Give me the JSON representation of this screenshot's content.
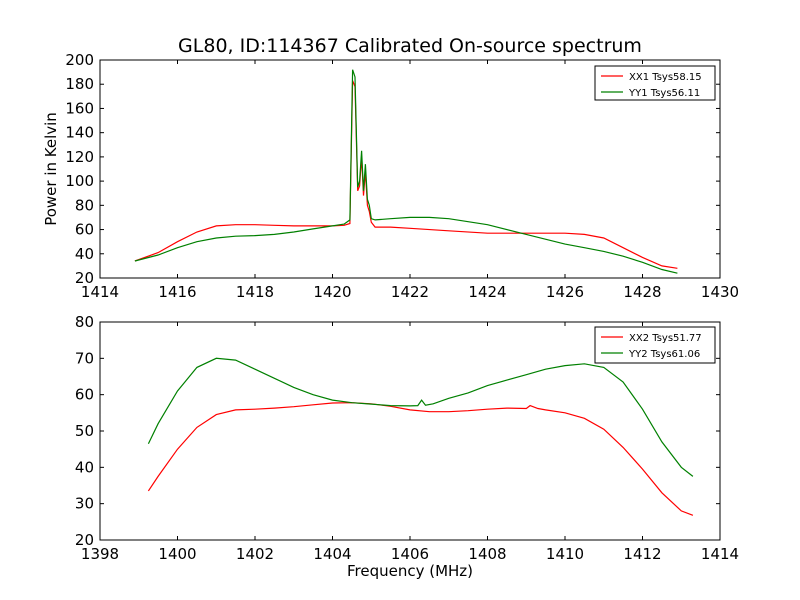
{
  "title": "GL80, ID:114367 Calibrated On-source spectrum",
  "chart_data": [
    {
      "type": "line",
      "xlabel": "",
      "ylabel": "Power in Kelvin",
      "xlim": [
        1414,
        1430
      ],
      "ylim": [
        20,
        200
      ],
      "xticks": [
        1414,
        1416,
        1418,
        1420,
        1422,
        1424,
        1426,
        1428,
        1430
      ],
      "yticks": [
        20,
        40,
        60,
        80,
        100,
        120,
        140,
        160,
        180,
        200
      ],
      "grid": false,
      "legend": "top-right",
      "series": [
        {
          "name": "XX1 Tsys58.15",
          "color": "#ff0000",
          "x": [
            1414.9,
            1415.5,
            1416.0,
            1416.5,
            1417.0,
            1417.5,
            1418.0,
            1418.5,
            1419.0,
            1419.5,
            1420.0,
            1420.3,
            1420.45,
            1420.52,
            1420.58,
            1420.65,
            1420.7,
            1420.75,
            1420.8,
            1420.85,
            1420.9,
            1420.95,
            1421.0,
            1421.1,
            1421.5,
            1422.0,
            1423.0,
            1424.0,
            1425.0,
            1426.0,
            1426.5,
            1427.0,
            1427.5,
            1428.0,
            1428.5,
            1428.9
          ],
          "y": [
            34,
            41,
            50,
            58,
            63,
            64,
            64,
            63.5,
            63,
            63,
            63,
            63.5,
            65,
            183,
            178,
            92,
            96,
            120,
            88,
            108,
            80,
            75,
            66,
            62,
            62,
            61,
            59,
            57,
            57,
            57,
            56,
            53,
            45,
            37,
            30,
            28
          ]
        },
        {
          "name": "YY1 Tsys56.11",
          "color": "#008000",
          "x": [
            1414.9,
            1415.5,
            1416.0,
            1416.5,
            1417.0,
            1417.5,
            1418.0,
            1418.5,
            1419.0,
            1419.5,
            1420.0,
            1420.3,
            1420.45,
            1420.52,
            1420.58,
            1420.65,
            1420.7,
            1420.75,
            1420.8,
            1420.85,
            1420.9,
            1420.95,
            1421.0,
            1421.1,
            1421.5,
            1422.0,
            1422.5,
            1423.0,
            1424.0,
            1425.0,
            1426.0,
            1426.5,
            1427.0,
            1427.5,
            1428.0,
            1428.5,
            1428.9
          ],
          "y": [
            34,
            39,
            45,
            50,
            53,
            54.5,
            55,
            56,
            58,
            60.5,
            63,
            64.5,
            68,
            192,
            186,
            95,
            100,
            125,
            92,
            114,
            85,
            80,
            69,
            68,
            69,
            70,
            70,
            69,
            64,
            56,
            48,
            45,
            42,
            38,
            33,
            27,
            24
          ]
        }
      ]
    },
    {
      "type": "line",
      "xlabel": "Frequency (MHz)",
      "ylabel": "",
      "xlim": [
        1398,
        1414
      ],
      "ylim": [
        20,
        80
      ],
      "xticks": [
        1398,
        1400,
        1402,
        1404,
        1406,
        1408,
        1410,
        1412,
        1414
      ],
      "yticks": [
        20,
        30,
        40,
        50,
        60,
        70,
        80
      ],
      "grid": false,
      "legend": "top-right",
      "series": [
        {
          "name": "XX2 Tsys51.77",
          "color": "#ff0000",
          "x": [
            1399.25,
            1399.5,
            1400.0,
            1400.5,
            1401.0,
            1401.5,
            1402.0,
            1402.5,
            1403.0,
            1403.5,
            1404.0,
            1404.5,
            1405.0,
            1405.5,
            1406.0,
            1406.5,
            1407.0,
            1407.5,
            1408.0,
            1408.5,
            1409.0,
            1409.1,
            1409.3,
            1409.5,
            1410.0,
            1410.5,
            1411.0,
            1411.5,
            1412.0,
            1412.5,
            1413.0,
            1413.3
          ],
          "y": [
            33.5,
            37.5,
            45,
            51,
            54.5,
            55.8,
            56,
            56.3,
            56.7,
            57.2,
            57.7,
            57.8,
            57.5,
            56.8,
            55.8,
            55.3,
            55.3,
            55.6,
            56,
            56.3,
            56.2,
            57,
            56.2,
            55.8,
            55,
            53.5,
            50.5,
            45.5,
            39.5,
            33,
            28,
            26.8
          ]
        },
        {
          "name": "YY2 Tsys61.06",
          "color": "#008000",
          "x": [
            1399.25,
            1399.5,
            1400.0,
            1400.5,
            1401.0,
            1401.5,
            1402.0,
            1402.5,
            1403.0,
            1403.5,
            1404.0,
            1404.5,
            1405.0,
            1405.5,
            1406.0,
            1406.2,
            1406.3,
            1406.4,
            1406.6,
            1407.0,
            1407.5,
            1408.0,
            1408.5,
            1409.0,
            1409.5,
            1410.0,
            1410.5,
            1411.0,
            1411.5,
            1412.0,
            1412.5,
            1413.0,
            1413.3
          ],
          "y": [
            46.5,
            52,
            61,
            67.5,
            70,
            69.5,
            67,
            64.5,
            62,
            60,
            58.5,
            57.8,
            57.4,
            57,
            56.9,
            57,
            58.5,
            57.1,
            57.5,
            59,
            60.5,
            62.5,
            64,
            65.5,
            67,
            68,
            68.5,
            67.5,
            63.5,
            56,
            47,
            40,
            37.5
          ]
        }
      ]
    }
  ]
}
